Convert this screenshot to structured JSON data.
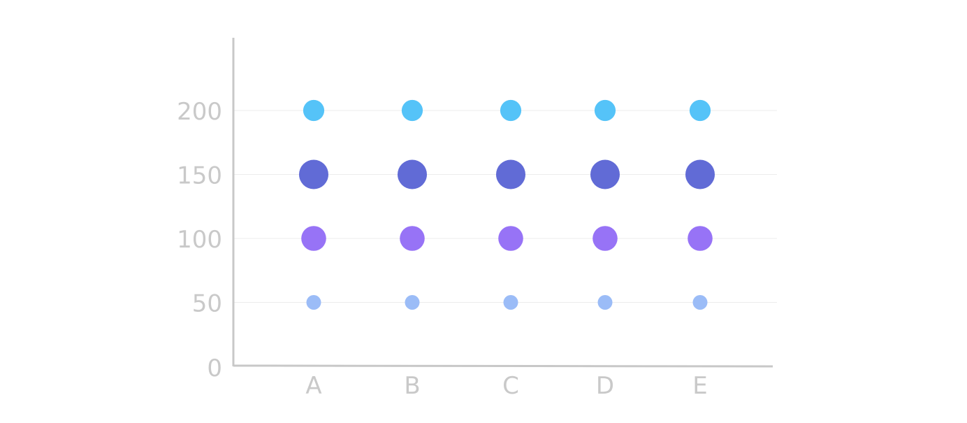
{
  "chart_data": {
    "type": "scatter",
    "categories": [
      "A",
      "B",
      "C",
      "D",
      "E"
    ],
    "y_ticks": [
      "0",
      "50",
      "100",
      "150",
      "200"
    ],
    "ylim": [
      0,
      250
    ],
    "grid": true,
    "legend": "none",
    "title": "",
    "xlabel": "",
    "ylabel": "",
    "series": [
      {
        "color": "#9bbcf7",
        "values": [
          50,
          50,
          50,
          50,
          50
        ],
        "relative_size": 0.5
      },
      {
        "color": "#9773f6",
        "values": [
          100,
          100,
          100,
          100,
          100
        ],
        "relative_size": 0.85
      },
      {
        "color": "#616bd6",
        "values": [
          150,
          150,
          150,
          150,
          150
        ],
        "relative_size": 1.0
      },
      {
        "color": "#55c3f8",
        "values": [
          200,
          200,
          200,
          200,
          200
        ],
        "relative_size": 0.72
      }
    ],
    "colors": {
      "axis": "#c8c8c8",
      "grid": "#ececec",
      "tick_label": "#c9c9c9"
    }
  }
}
